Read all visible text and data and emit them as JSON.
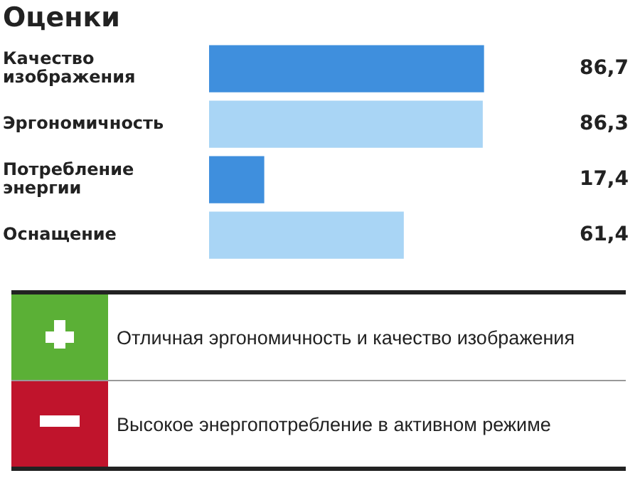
{
  "chart_data": {
    "type": "bar",
    "orientation": "horizontal",
    "title": "Оценки",
    "categories": [
      "Качество изображения",
      "Эргономичность",
      "Потребление энергии",
      "Оснащение"
    ],
    "values": [
      86.7,
      86.3,
      17.4,
      61.4
    ],
    "colors": [
      "#3f8fdd",
      "#a9d5f5",
      "#3f8fdd",
      "#a9d5f5"
    ],
    "value_labels": [
      "86,7",
      "86,3",
      "17,4",
      "61,4"
    ],
    "legend": false,
    "annotations": [
      "Отличная эргономичность и качество изображения",
      "Высокое энергопотребление в активном режиме"
    ]
  }
}
